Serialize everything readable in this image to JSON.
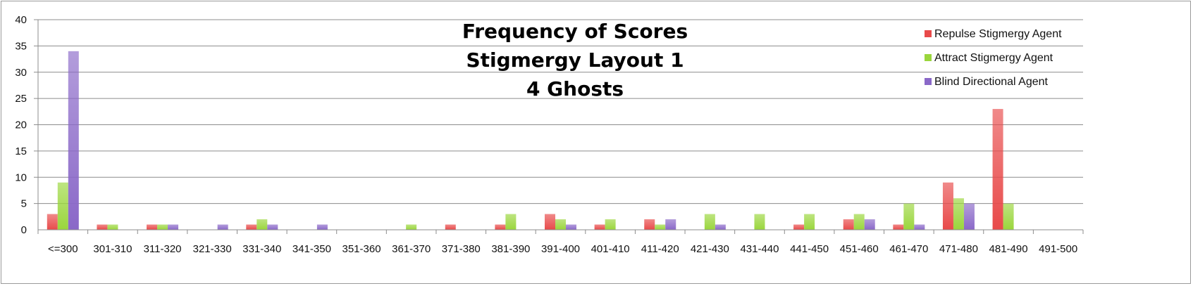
{
  "chart_data": {
    "type": "bar",
    "title_lines": [
      "Frequency of Scores",
      "Stigmergy Layout 1",
      "4 Ghosts"
    ],
    "xlabel": "",
    "ylabel": "",
    "ylim": [
      0,
      40
    ],
    "yticks": [
      0,
      5,
      10,
      15,
      20,
      25,
      30,
      35,
      40
    ],
    "grid": true,
    "legend_position": "top-right",
    "categories": [
      "<=300",
      "301-310",
      "311-320",
      "321-330",
      "331-340",
      "341-350",
      "351-360",
      "361-370",
      "371-380",
      "381-390",
      "391-400",
      "401-410",
      "411-420",
      "421-430",
      "431-440",
      "441-450",
      "451-460",
      "461-470",
      "471-480",
      "481-490",
      "491-500"
    ],
    "series": [
      {
        "name": "Repulse Stigmergy Agent",
        "color": "#e84a4a",
        "values": [
          3,
          1,
          1,
          0,
          1,
          0,
          0,
          0,
          1,
          1,
          3,
          1,
          2,
          0,
          0,
          1,
          2,
          1,
          9,
          23,
          0
        ]
      },
      {
        "name": "Attract Stigmergy Agent",
        "color": "#9ad63c",
        "values": [
          9,
          1,
          1,
          0,
          2,
          0,
          0,
          1,
          0,
          3,
          2,
          2,
          1,
          3,
          3,
          3,
          3,
          5,
          6,
          5,
          0
        ]
      },
      {
        "name": "Blind Directional Agent",
        "color": "#8a68c8",
        "values": [
          34,
          0,
          1,
          1,
          1,
          1,
          0,
          0,
          0,
          0,
          1,
          0,
          2,
          1,
          0,
          0,
          2,
          1,
          5,
          0,
          0
        ]
      }
    ]
  }
}
